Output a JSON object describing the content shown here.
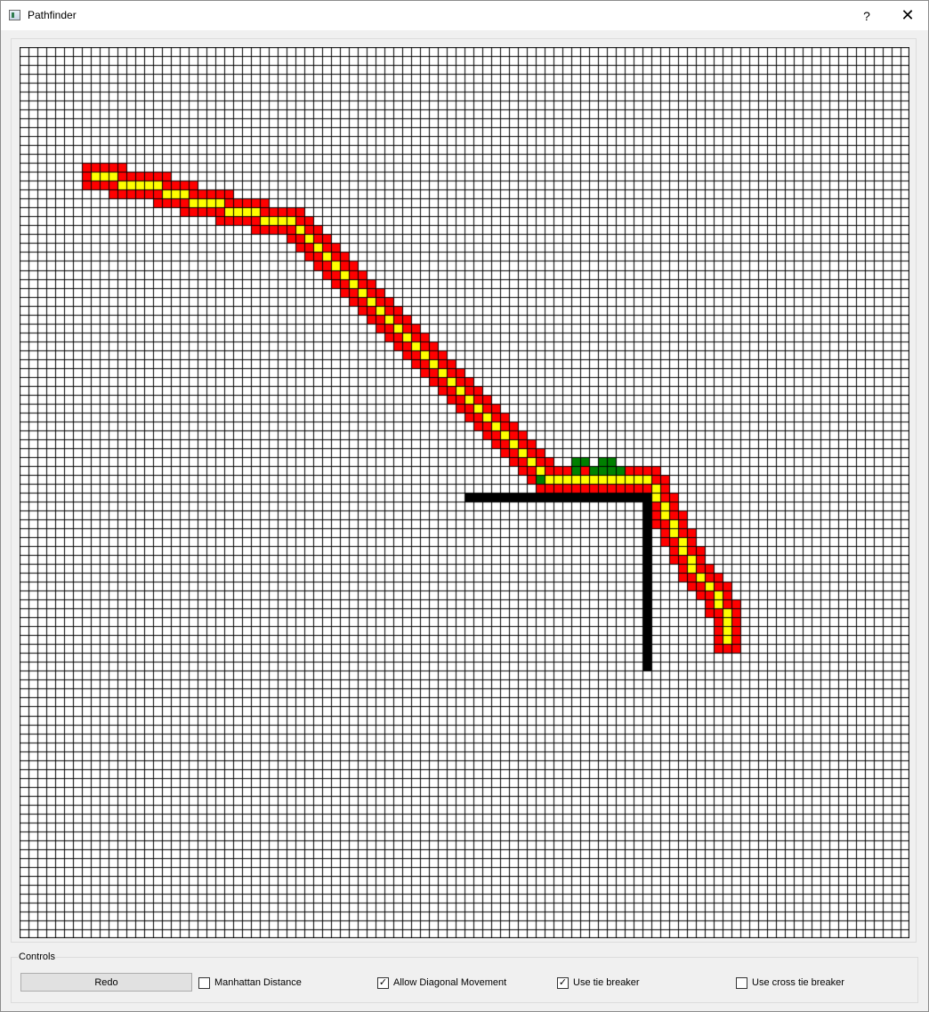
{
  "window": {
    "title": "Pathfinder",
    "help_glyph": "?",
    "close_glyph": "✕",
    "icon": "app-window-icon"
  },
  "grid": {
    "columns": 100,
    "rows": 100,
    "colors": {
      "empty": "#ffffff",
      "line": "#000000",
      "open": "#ff0000",
      "path": "#ffff00",
      "closed": "#008000",
      "wall": "#000000"
    },
    "walls": [
      [
        50,
        50
      ],
      [
        51,
        50
      ],
      [
        52,
        50
      ],
      [
        53,
        50
      ],
      [
        54,
        50
      ],
      [
        55,
        50
      ],
      [
        56,
        50
      ],
      [
        57,
        50
      ],
      [
        58,
        50
      ],
      [
        59,
        50
      ],
      [
        60,
        50
      ],
      [
        61,
        50
      ],
      [
        62,
        50
      ],
      [
        63,
        50
      ],
      [
        64,
        50
      ],
      [
        65,
        50
      ],
      [
        66,
        50
      ],
      [
        67,
        50
      ],
      [
        68,
        50
      ],
      [
        69,
        50
      ],
      [
        70,
        50
      ],
      [
        70,
        51
      ],
      [
        70,
        52
      ],
      [
        70,
        53
      ],
      [
        70,
        54
      ],
      [
        70,
        55
      ],
      [
        70,
        56
      ],
      [
        70,
        57
      ],
      [
        70,
        58
      ],
      [
        70,
        59
      ],
      [
        70,
        60
      ],
      [
        70,
        61
      ],
      [
        70,
        62
      ],
      [
        70,
        63
      ],
      [
        70,
        64
      ],
      [
        70,
        65
      ],
      [
        70,
        66
      ],
      [
        70,
        67
      ],
      [
        70,
        68
      ],
      [
        70,
        69
      ]
    ],
    "closed": [
      [
        62,
        46
      ],
      [
        63,
        46
      ],
      [
        65,
        46
      ],
      [
        66,
        46
      ],
      [
        62,
        47
      ],
      [
        64,
        47
      ],
      [
        65,
        47
      ],
      [
        66,
        47
      ],
      [
        67,
        47
      ],
      [
        58,
        48
      ],
      [
        59,
        48
      ],
      [
        60,
        48
      ]
    ],
    "path": [
      [
        8,
        14
      ],
      [
        9,
        14
      ],
      [
        10,
        14
      ],
      [
        11,
        15
      ],
      [
        12,
        15
      ],
      [
        13,
        15
      ],
      [
        14,
        15
      ],
      [
        15,
        15
      ],
      [
        16,
        16
      ],
      [
        17,
        16
      ],
      [
        18,
        16
      ],
      [
        19,
        17
      ],
      [
        20,
        17
      ],
      [
        21,
        17
      ],
      [
        22,
        17
      ],
      [
        23,
        18
      ],
      [
        24,
        18
      ],
      [
        25,
        18
      ],
      [
        26,
        18
      ],
      [
        27,
        19
      ],
      [
        28,
        19
      ],
      [
        29,
        19
      ],
      [
        30,
        19
      ],
      [
        31,
        20
      ],
      [
        32,
        21
      ],
      [
        33,
        22
      ],
      [
        34,
        23
      ],
      [
        35,
        24
      ],
      [
        36,
        25
      ],
      [
        37,
        26
      ],
      [
        38,
        27
      ],
      [
        39,
        28
      ],
      [
        40,
        29
      ],
      [
        41,
        30
      ],
      [
        42,
        31
      ],
      [
        43,
        32
      ],
      [
        44,
        33
      ],
      [
        45,
        34
      ],
      [
        46,
        35
      ],
      [
        47,
        36
      ],
      [
        48,
        37
      ],
      [
        49,
        38
      ],
      [
        50,
        39
      ],
      [
        51,
        40
      ],
      [
        52,
        41
      ],
      [
        53,
        42
      ],
      [
        54,
        43
      ],
      [
        55,
        44
      ],
      [
        56,
        45
      ],
      [
        57,
        46
      ],
      [
        58,
        47
      ],
      [
        59,
        48
      ],
      [
        60,
        48
      ],
      [
        61,
        48
      ],
      [
        62,
        48
      ],
      [
        63,
        48
      ],
      [
        64,
        48
      ],
      [
        65,
        48
      ],
      [
        66,
        48
      ],
      [
        67,
        48
      ],
      [
        68,
        48
      ],
      [
        69,
        48
      ],
      [
        70,
        48
      ],
      [
        71,
        49
      ],
      [
        71,
        50
      ],
      [
        72,
        51
      ],
      [
        72,
        52
      ],
      [
        73,
        53
      ],
      [
        73,
        54
      ],
      [
        74,
        55
      ],
      [
        74,
        56
      ],
      [
        75,
        57
      ],
      [
        75,
        58
      ],
      [
        76,
        59
      ],
      [
        77,
        60
      ],
      [
        78,
        61
      ],
      [
        78,
        62
      ],
      [
        79,
        63
      ],
      [
        79,
        64
      ],
      [
        79,
        65
      ],
      [
        79,
        66
      ]
    ],
    "path_halo": 1
  },
  "controls": {
    "legend": "Controls",
    "redo_label": "Redo",
    "manhattan": {
      "label": "Manhattan Distance",
      "checked": false
    },
    "diagonal": {
      "label": "Allow Diagonal Movement",
      "checked": true
    },
    "tie_breaker": {
      "label": "Use tie breaker",
      "checked": true
    },
    "cross_tie_breaker": {
      "label": "Use cross tie breaker",
      "checked": false
    },
    "check_glyph": "✓"
  }
}
